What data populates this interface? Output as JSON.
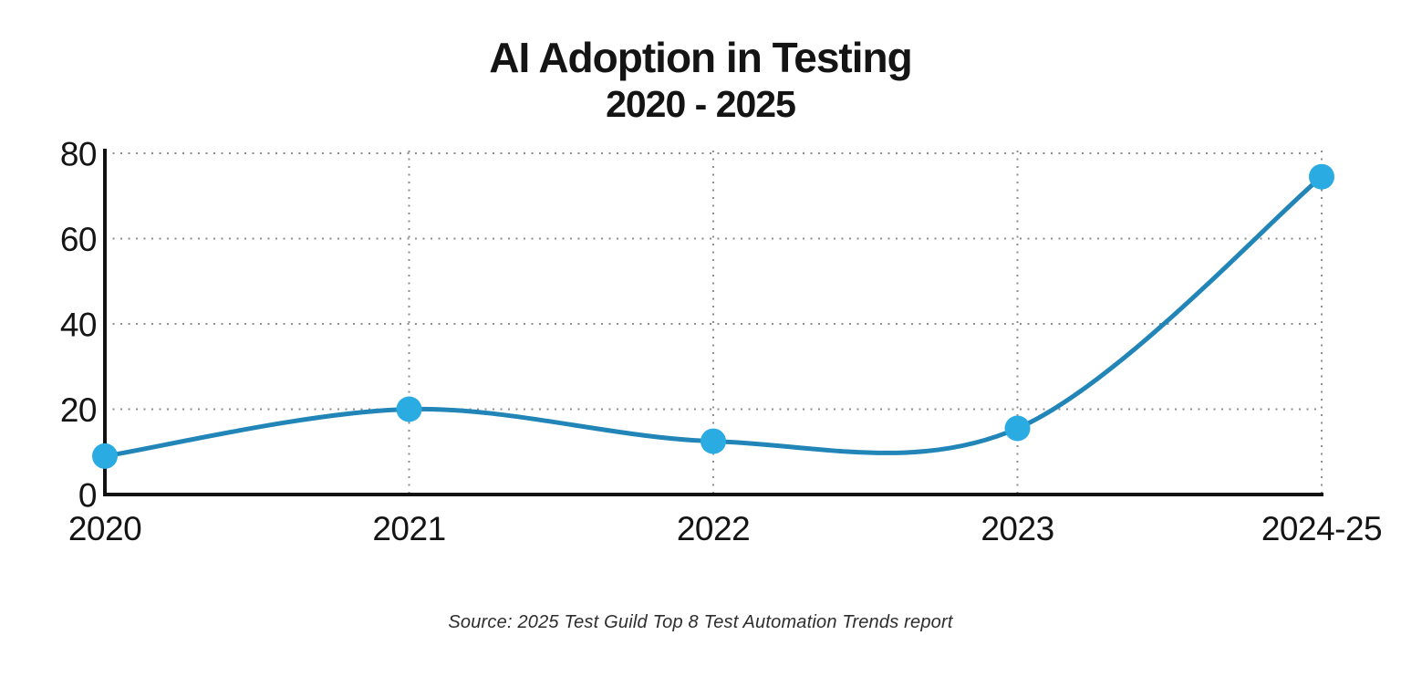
{
  "page": {
    "background_color": "#ffffff"
  },
  "header": {
    "title_line1": "AI Adoption in Testing",
    "title_line2": "2020 - 2025"
  },
  "footer": {
    "source_text": "Source: 2025 Test Guild Top 8 Test Automation Trends report"
  },
  "chart_data": {
    "type": "line",
    "title": "AI Adoption in Testing 2020 - 2025",
    "categories": [
      "2020",
      "2021",
      "2022",
      "2023",
      "2024-25"
    ],
    "values": [
      9,
      20,
      12.5,
      15.5,
      74.5
    ],
    "xlabel": "",
    "ylabel": "",
    "ylim": [
      0,
      80
    ],
    "yticks": [
      0,
      20,
      40,
      60,
      80
    ],
    "grid": true,
    "legend": false,
    "marker_radius": 14,
    "colors": {
      "line": "#2185b8",
      "marker": "#2aabe2",
      "axis": "#111111",
      "grid": "#8d8d8d",
      "text": "#141414"
    }
  }
}
